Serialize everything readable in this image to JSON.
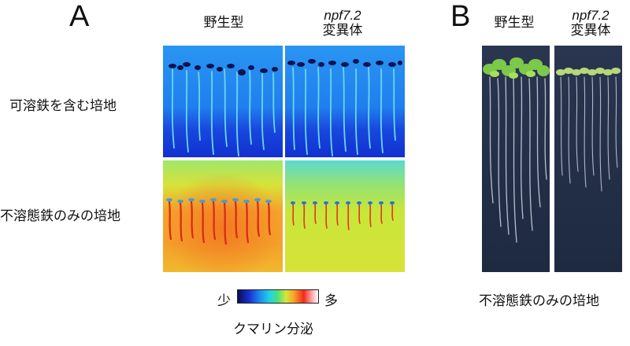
{
  "panel_a": {
    "letter": "A",
    "col_labels": [
      {
        "line1": "野生型",
        "line2": ""
      },
      {
        "line1": "npf7.2",
        "line2": "変異体"
      }
    ],
    "row_labels": [
      "可溶鉄を含む培地",
      "不溶態鉄のみの培地"
    ],
    "scale": {
      "low": "少",
      "high": "多",
      "title": "クマリン分泌"
    }
  },
  "panel_b": {
    "letter": "B",
    "col_labels": [
      {
        "line1": "野生型",
        "line2": ""
      },
      {
        "line1": "npf7.2",
        "line2": "変異体"
      }
    ],
    "caption": "不溶態鉄のみの培地"
  },
  "colors": {
    "soluble_bg_top": "#1f8cf0",
    "soluble_bg_bottom": "#1430d8",
    "insoluble_bg": "#f0b030",
    "mutant_insoluble_bg": "#cfe83a",
    "photo_bg": "#243047"
  }
}
